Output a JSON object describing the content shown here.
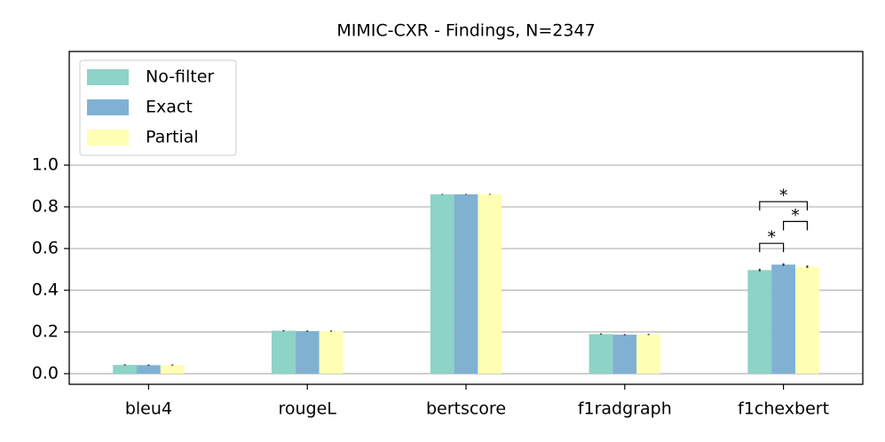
{
  "chart_data": {
    "type": "bar",
    "title": "MIMIC-CXR - Findings, N=2347",
    "categories": [
      "bleu4",
      "rougeL",
      "bertscore",
      "f1radgraph",
      "f1chexbert"
    ],
    "series": [
      {
        "name": "No-filter",
        "color": "#8dd3c7",
        "values": [
          0.042,
          0.206,
          0.86,
          0.19,
          0.497
        ],
        "errors": [
          0.003,
          0.003,
          0.002,
          0.003,
          0.006
        ]
      },
      {
        "name": "Exact",
        "color": "#80b1d3",
        "values": [
          0.041,
          0.204,
          0.86,
          0.187,
          0.523
        ],
        "errors": [
          0.003,
          0.003,
          0.002,
          0.003,
          0.006
        ]
      },
      {
        "name": "Partial",
        "color": "#ffffb3",
        "values": [
          0.041,
          0.204,
          0.86,
          0.188,
          0.513
        ],
        "errors": [
          0.003,
          0.003,
          0.002,
          0.003,
          0.006
        ]
      }
    ],
    "annotations": [
      {
        "label": "*",
        "category": "f1chexbert",
        "series": [
          "No-filter",
          "Exact"
        ],
        "y": 0.625
      },
      {
        "label": "*",
        "category": "f1chexbert",
        "series": [
          "Exact",
          "Partial"
        ],
        "y": 0.73
      },
      {
        "label": "*",
        "category": "f1chexbert",
        "series": [
          "No-filter",
          "Partial"
        ],
        "y": 0.825
      }
    ],
    "ylim": [
      -0.051,
      1.545
    ],
    "yticks": [
      {
        "value": 0,
        "label": "0.0"
      },
      0.2,
      0.4,
      0.6,
      0.8,
      {
        "value": 1,
        "label": "1.0"
      }
    ],
    "grid": true,
    "legend": "upper left"
  }
}
